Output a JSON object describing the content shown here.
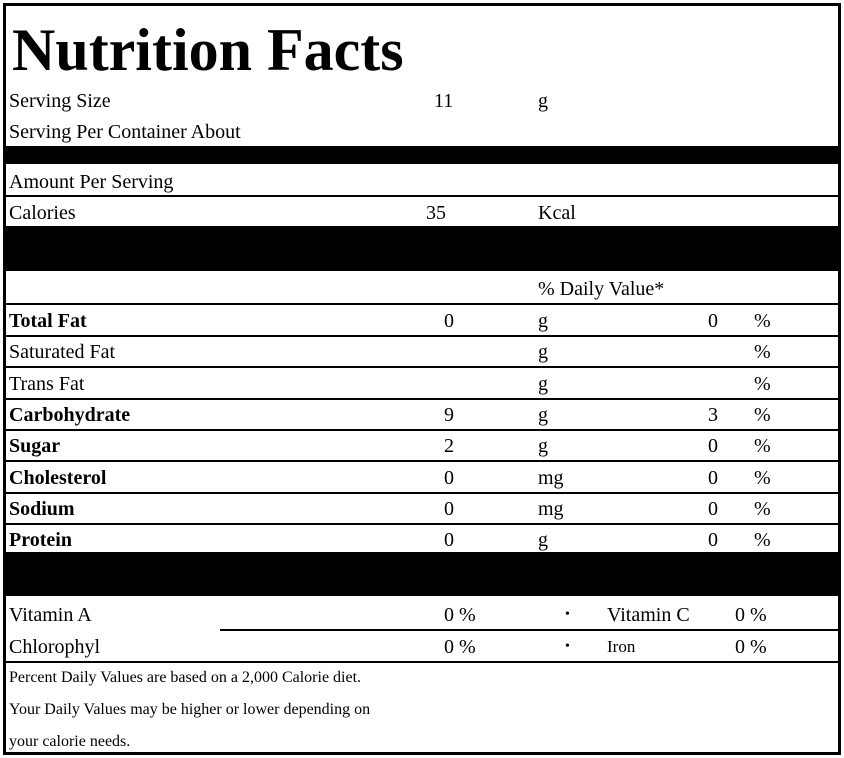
{
  "header": {
    "title": "Nutrition Facts"
  },
  "serving": {
    "size_label": "Serving Size",
    "size_value": "11",
    "size_unit": "g",
    "per_container_label": "Serving Per Container About"
  },
  "amount_per_serving": "Amount Per Serving",
  "calories": {
    "label": "Calories",
    "value": "35",
    "unit": "Kcal"
  },
  "daily_value_header": "% Daily Value*",
  "nutrients": [
    {
      "name": "Total Fat",
      "bold": true,
      "amount": "0",
      "unit": "g",
      "daily_value": "0",
      "percent_sign": "%"
    },
    {
      "name": "Saturated Fat",
      "bold": false,
      "unit": "g",
      "percent_sign": "%"
    },
    {
      "name": "Trans Fat",
      "bold": false,
      "unit": "g",
      "percent_sign": "%"
    },
    {
      "name": "Carbohydrate",
      "bold": true,
      "amount": "9",
      "unit": "g",
      "daily_value": "3",
      "percent_sign": "%"
    },
    {
      "name": "Sugar",
      "bold": true,
      "amount": "2",
      "unit": "g",
      "daily_value": "0",
      "percent_sign": "%"
    },
    {
      "name": "Cholesterol",
      "bold": true,
      "amount": "0",
      "unit": "mg",
      "daily_value": "0",
      "percent_sign": "%"
    },
    {
      "name": "Sodium",
      "bold": true,
      "amount": "0",
      "unit": "mg",
      "daily_value": "0",
      "percent_sign": "%"
    },
    {
      "name": "Protein",
      "bold": true,
      "amount": "0",
      "unit": "g",
      "daily_value": "0",
      "percent_sign": "%"
    }
  ],
  "vitamins": [
    {
      "left_name": "Vitamin A",
      "left_value": "0 %",
      "separator": "•",
      "right_name": "Vitamin C",
      "right_value": "0 %"
    },
    {
      "left_name": "Chlorophyl",
      "left_value": "0 %",
      "separator": "•",
      "right_name": "Iron",
      "right_value": "0 %"
    }
  ],
  "footnote": [
    "Percent Daily Values are based on a 2,000 Calorie diet.",
    "Your Daily Values may be higher or lower depending on",
    "your calorie needs."
  ]
}
